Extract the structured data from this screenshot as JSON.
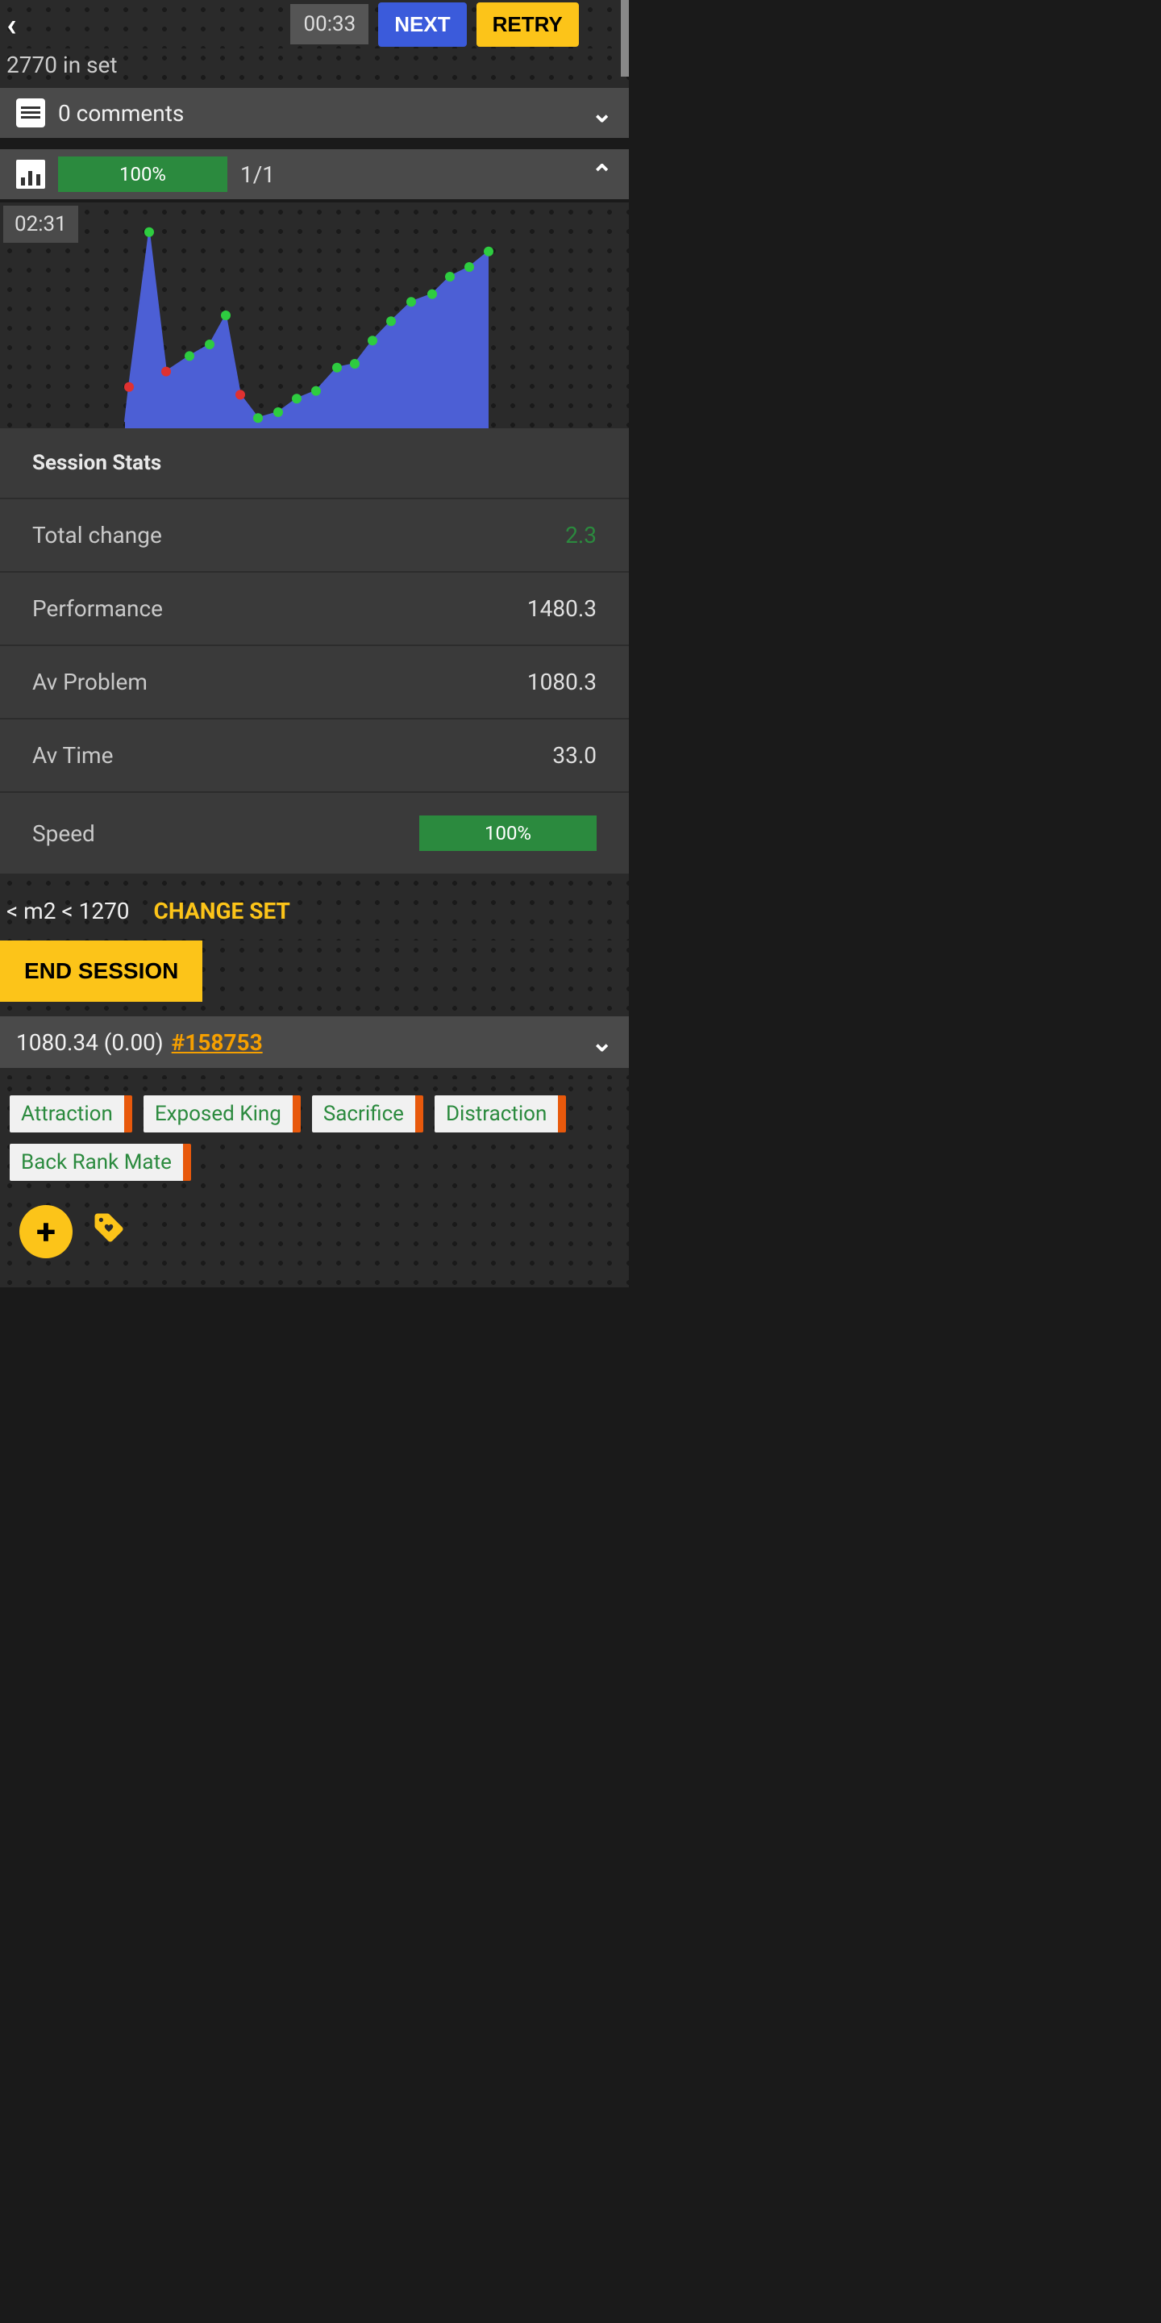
{
  "header": {
    "timer": "00:33",
    "next_label": "NEXT",
    "retry_label": "RETRY"
  },
  "set_info": "2770 in set",
  "comments": {
    "text": "0 comments"
  },
  "progress": {
    "percent_label": "100%",
    "fraction": "1/1"
  },
  "chart": {
    "type": "area",
    "time_badge": "02:31",
    "area_color": "#4c5fd5",
    "green_dot": "#2ecc40",
    "red_dot": "#e03131",
    "points": [
      {
        "x": 155,
        "y": 0.0,
        "ok": null
      },
      {
        "x": 160,
        "y": 0.18,
        "ok": false
      },
      {
        "x": 185,
        "y": 0.98,
        "ok": true
      },
      {
        "x": 206,
        "y": 0.26,
        "ok": false
      },
      {
        "x": 235,
        "y": 0.34,
        "ok": true
      },
      {
        "x": 260,
        "y": 0.4,
        "ok": true
      },
      {
        "x": 280,
        "y": 0.55,
        "ok": true
      },
      {
        "x": 298,
        "y": 0.14,
        "ok": false
      },
      {
        "x": 320,
        "y": 0.02,
        "ok": true
      },
      {
        "x": 345,
        "y": 0.05,
        "ok": true
      },
      {
        "x": 368,
        "y": 0.12,
        "ok": true
      },
      {
        "x": 392,
        "y": 0.16,
        "ok": true
      },
      {
        "x": 418,
        "y": 0.28,
        "ok": true
      },
      {
        "x": 440,
        "y": 0.3,
        "ok": true
      },
      {
        "x": 462,
        "y": 0.42,
        "ok": true
      },
      {
        "x": 485,
        "y": 0.52,
        "ok": true
      },
      {
        "x": 510,
        "y": 0.62,
        "ok": true
      },
      {
        "x": 536,
        "y": 0.66,
        "ok": true
      },
      {
        "x": 558,
        "y": 0.75,
        "ok": true
      },
      {
        "x": 582,
        "y": 0.8,
        "ok": true
      },
      {
        "x": 606,
        "y": 0.88,
        "ok": true
      }
    ],
    "ylim": [
      0,
      1
    ],
    "viewbox_w": 780,
    "viewbox_h": 280
  },
  "stats": {
    "header": "Session Stats",
    "rows": [
      {
        "label": "Total change",
        "value": "2.3",
        "style": "green"
      },
      {
        "label": "Performance",
        "value": "1480.3"
      },
      {
        "label": "Av Problem",
        "value": "1080.3"
      },
      {
        "label": "Av Time",
        "value": "33.0"
      },
      {
        "label": "Speed",
        "value": "100%",
        "style": "bar"
      }
    ]
  },
  "set_filter": "< m2 < 1270",
  "change_set_label": "CHANGE SET",
  "end_session_label": "END SESSION",
  "problem": {
    "rating": "1080.34 (0.00)",
    "id": "#158753"
  },
  "tags": [
    "Attraction",
    "Exposed King",
    "Sacrifice",
    "Distraction",
    "Back Rank Mate"
  ],
  "colors": {
    "accent_green": "#2b8a3e",
    "accent_yellow": "#fcc419",
    "accent_blue": "#3b5bdb",
    "accent_orange": "#f59f00",
    "tag_side": "#e8590c"
  }
}
